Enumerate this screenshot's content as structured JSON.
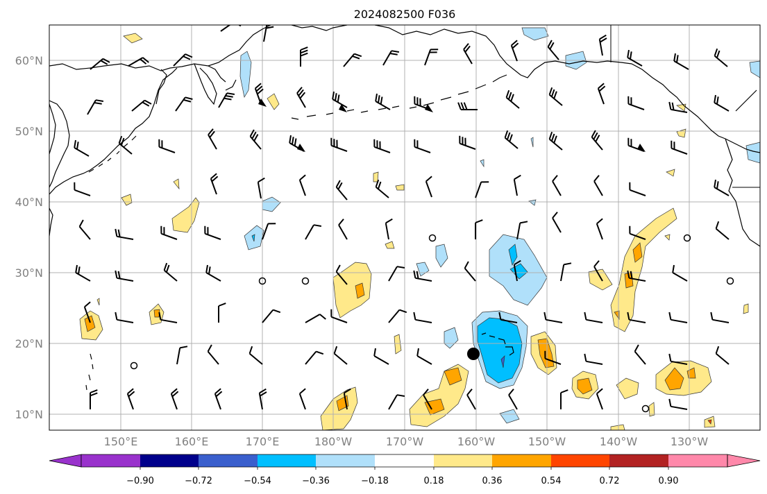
{
  "title": "2024082500 F036",
  "lat_labels": [
    "60°N",
    "50°N",
    "40°N",
    "30°N",
    "20°N",
    "10°N"
  ],
  "lon_labels": [
    "150°E",
    "160°E",
    "170°E",
    "180°W",
    "170°W",
    "160°W",
    "150°W",
    "140°W",
    "130°W"
  ],
  "colorbar": {
    "tick_labels": [
      "−0.90",
      "−0.72",
      "−0.54",
      "−0.36",
      "−0.18",
      "0.18",
      "0.36",
      "0.54",
      "0.72",
      "0.90"
    ],
    "colors": [
      "#9932cc",
      "#00008b",
      "#3a5fcd",
      "#00bfff",
      "#b0e0fa",
      "#ffffff",
      "#ffe98a",
      "#ffa500",
      "#ff4500",
      "#b22222",
      "#ff88aa"
    ]
  },
  "colors": {
    "coast": "#000000",
    "grid": "#b0b0b0",
    "yellow": "#ffe98a",
    "orange": "#ffa500",
    "light_blue": "#b0e0fa",
    "cyan": "#00bfff",
    "mid_blue": "#3a5fcd"
  }
}
